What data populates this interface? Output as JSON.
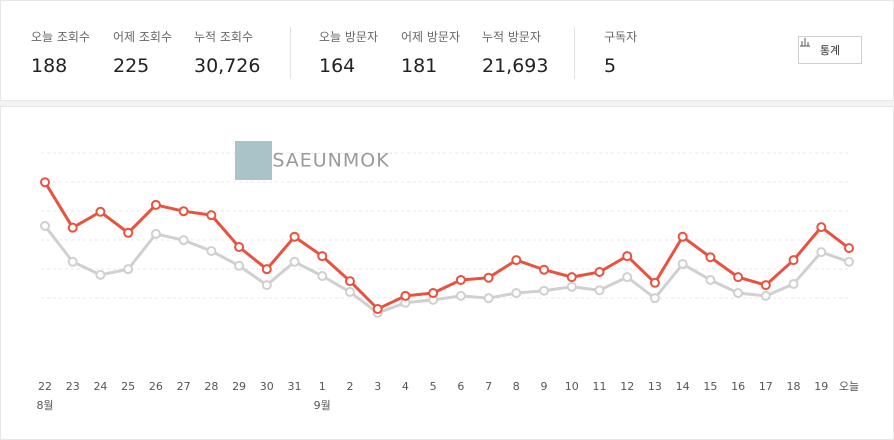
{
  "stats": [
    {
      "label": "오늘 조회수",
      "value": "188"
    },
    {
      "label": "어제 조회수",
      "value": "225"
    },
    {
      "label": "누적 조회수",
      "value": "30,726"
    },
    {
      "label": "오늘 방문자",
      "value": "164"
    },
    {
      "label": "어제 방문자",
      "value": "181"
    },
    {
      "label": "누적 방문자",
      "value": "21,693"
    },
    {
      "label": "구독자",
      "value": "5"
    }
  ],
  "button": "통계",
  "watermark": "SAEUNMOK",
  "chart_data": {
    "type": "line",
    "categories": [
      "22",
      "23",
      "24",
      "25",
      "26",
      "27",
      "28",
      "29",
      "30",
      "31",
      "1",
      "2",
      "3",
      "4",
      "5",
      "6",
      "7",
      "8",
      "9",
      "10",
      "11",
      "12",
      "13",
      "14",
      "15",
      "16",
      "17",
      "18",
      "19",
      "오늘"
    ],
    "month_labels": [
      "8월",
      null,
      null,
      null,
      null,
      null,
      null,
      null,
      null,
      null,
      "9월",
      null,
      null,
      null,
      null,
      null,
      null,
      null,
      null,
      null,
      null,
      null,
      null,
      null,
      null,
      null,
      null,
      null,
      null,
      null
    ],
    "ylim": [
      0,
      380
    ],
    "series": [
      {
        "color": "#d0d0d0",
        "values": [
          227,
          164,
          141,
          151,
          213,
          202,
          183,
          157,
          123,
          164,
          139,
          111,
          74,
          92,
          97,
          104,
          100,
          109,
          113,
          120,
          114,
          137,
          100,
          160,
          132,
          109,
          104,
          125,
          181,
          164
        ]
      },
      {
        "color": "#e8533f",
        "values": [
          304,
          224,
          252,
          215,
          264,
          253,
          246,
          190,
          151,
          208,
          174,
          130,
          81,
          104,
          109,
          132,
          136,
          167,
          150,
          137,
          146,
          174,
          127,
          208,
          172,
          137,
          123,
          167,
          225,
          188
        ]
      }
    ]
  }
}
